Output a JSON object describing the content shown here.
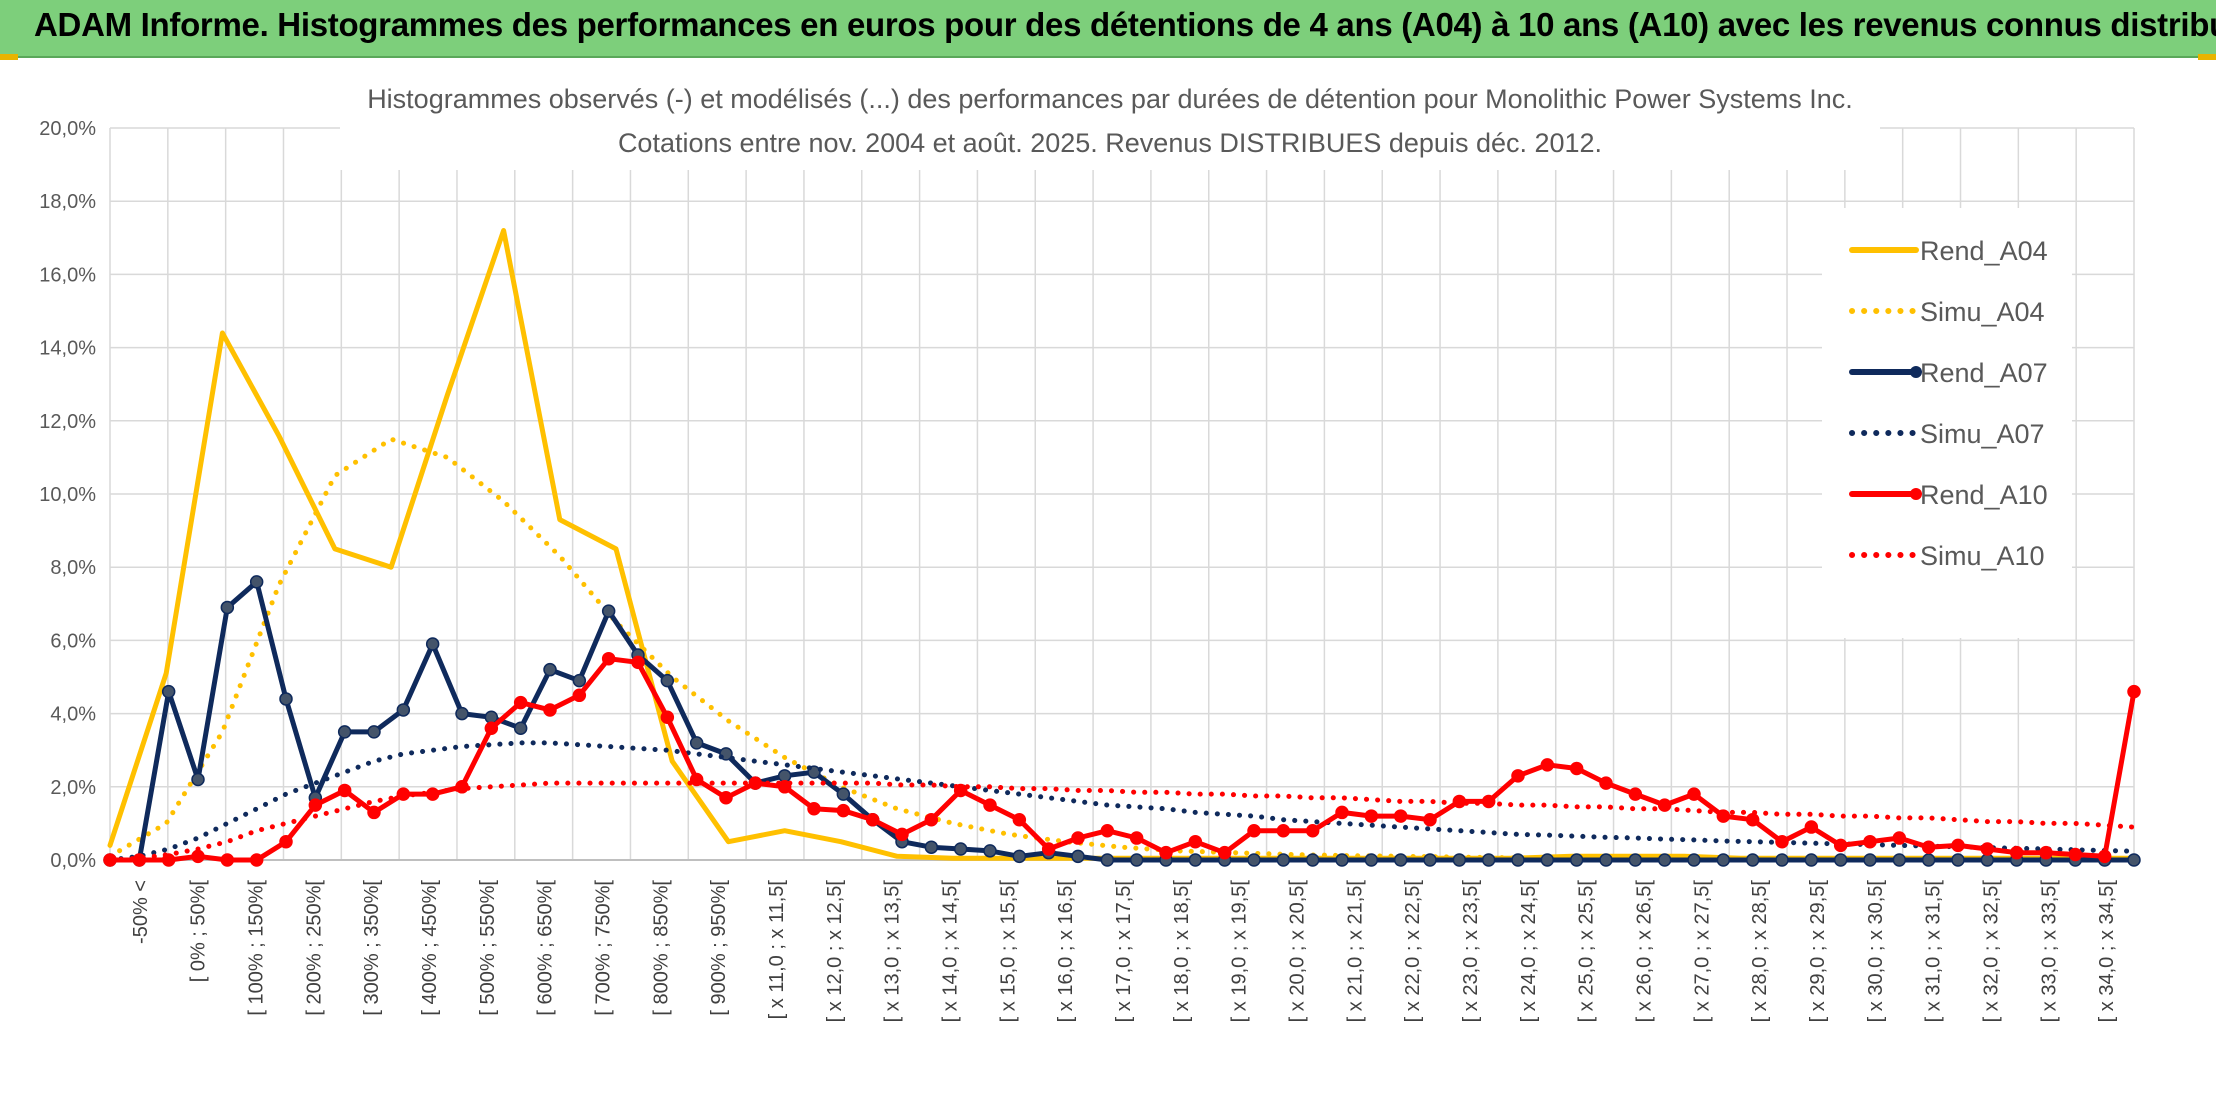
{
  "banner": {
    "title": "ADAM Informe. Histogrammes des performances en euros pour des détentions de 4 ans (A04) à 10 ans (A10) avec les revenus connus distribués"
  },
  "colors": {
    "a04": "#ffc000",
    "a07": "#0f2a5c",
    "a10": "#ff0000",
    "banner": "#7dcf7b"
  },
  "chart_data": {
    "type": "line",
    "title": "Histogrammes observés (-) et modélisés (...) des performances par durées de détention pour Monolithic Power Systems Inc.",
    "subtitle": "Cotations entre nov. 2004 et août. 2025. Revenus DISTRIBUES depuis déc. 2012.",
    "ylim": [
      0,
      20
    ],
    "yticks": [
      "0,0%",
      "2,0%",
      "4,0%",
      "6,0%",
      "8,0%",
      "10,0%",
      "12,0%",
      "14,0%",
      "16,0%",
      "18,0%",
      "20,0%"
    ],
    "grid": true,
    "legend_position": "right",
    "x_labels": [
      "-50% <",
      "[ 0% ; 50%[",
      "[ 100% ; 150%[",
      "[ 200% ; 250%[",
      "[ 300% ; 350%[",
      "[ 400% ; 450%[",
      "[ 500% ; 550%[",
      "[ 600% ; 650%[",
      "[ 700% ; 750%[",
      "[ 800% ; 850%[",
      "[ 900% ; 950%[",
      "[ x 11,0 ; x 11,5[",
      "[ x 12,0 ; x 12,5[",
      "[ x 13,0 ; x 13,5[",
      "[ x 14,0 ; x 14,5[",
      "[ x 15,0 ; x 15,5[",
      "[ x 16,0 ; x 16,5[",
      "[ x 17,0 ; x 17,5[",
      "[ x 18,0 ; x 18,5[",
      "[ x 19,0 ; x 19,5[",
      "[ x 20,0 ; x 20,5[",
      "[ x 21,0 ; x 21,5[",
      "[ x 22,0 ; x 22,5[",
      "[ x 23,0 ; x 23,5[",
      "[ x 24,0 ; x 24,5[",
      "[ x 25,0 ; x 25,5[",
      "[ x 26,0 ; x 26,5[",
      "[ x 27,0 ; x 27,5[",
      "[ x 28,0 ; x 28,5[",
      "[ x 29,0 ; x 29,5[",
      "[ x 30,0 ; x 30,5[",
      "[ x 31,0 ; x 31,5[",
      "[ x 32,0 ; x 32,5[",
      "[ x 33,0 ; x 33,5[",
      "[ x 34,0 ; x 34,5["
    ],
    "series": [
      {
        "name": "Rend_A04",
        "style": "solid",
        "color": "#ffc000",
        "markers": false,
        "values": [
          0.4,
          5.1,
          14.4,
          11.6,
          8.5,
          8.0,
          12.7,
          17.2,
          9.3,
          8.5,
          2.7,
          0.5,
          0.8,
          0.5,
          0.1,
          0.05,
          0.05,
          0.05,
          0.05,
          0.05,
          0.05,
          0.05,
          0.05,
          0.05,
          0.05,
          0.05,
          0.1,
          0.1,
          0.1,
          0.05,
          0.05,
          0.05,
          0.05,
          0.05,
          0.05,
          0.05,
          0.05
        ]
      },
      {
        "name": "Simu_A04",
        "style": "dotted",
        "color": "#ffc000",
        "markers": false,
        "values": [
          0.1,
          1.0,
          3.5,
          7.5,
          10.5,
          11.5,
          11.0,
          9.8,
          8.3,
          6.5,
          5.0,
          3.8,
          2.8,
          2.0,
          1.4,
          1.0,
          0.7,
          0.5,
          0.35,
          0.25,
          0.2,
          0.15,
          0.12,
          0.1,
          0.08,
          0.06,
          0.05,
          0.04,
          0.03,
          0.02,
          0.02,
          0.01,
          0.01,
          0.01,
          0.01,
          0.01,
          0.01
        ]
      },
      {
        "name": "Rend_A07",
        "style": "solid",
        "color": "#0f2a5c",
        "markers": true,
        "values": [
          0,
          0,
          4.6,
          2.2,
          6.9,
          7.6,
          4.4,
          1.7,
          3.5,
          3.5,
          4.1,
          5.9,
          4.0,
          3.9,
          3.6,
          5.2,
          4.9,
          6.8,
          5.6,
          4.9,
          3.2,
          2.9,
          2.1,
          2.3,
          2.4,
          1.8,
          1.1,
          0.5,
          0.35,
          0.3,
          0.25,
          0.1,
          0.2,
          0.1,
          0,
          0,
          0,
          0,
          0,
          0,
          0,
          0,
          0,
          0,
          0,
          0,
          0,
          0,
          0,
          0,
          0,
          0,
          0,
          0,
          0,
          0,
          0,
          0,
          0,
          0,
          0,
          0,
          0,
          0,
          0,
          0,
          0,
          0,
          0,
          0
        ]
      },
      {
        "name": "Simu_A07",
        "style": "dotted",
        "color": "#0f2a5c",
        "markers": false,
        "values": [
          0,
          0.1,
          0.3,
          0.6,
          1.0,
          1.4,
          1.8,
          2.1,
          2.4,
          2.7,
          2.9,
          3.0,
          3.1,
          3.15,
          3.2,
          3.2,
          3.15,
          3.1,
          3.05,
          3.0,
          2.9,
          2.8,
          2.7,
          2.6,
          2.5,
          2.4,
          2.3,
          2.2,
          2.1,
          2.0,
          1.9,
          1.8,
          1.7,
          1.6,
          1.5,
          1.45,
          1.4,
          1.3,
          1.25,
          1.2,
          1.1,
          1.05,
          1.0,
          0.95,
          0.9,
          0.85,
          0.8,
          0.75,
          0.7,
          0.68,
          0.65,
          0.62,
          0.6,
          0.57,
          0.55,
          0.52,
          0.5,
          0.48,
          0.46,
          0.44,
          0.42,
          0.4,
          0.38,
          0.36,
          0.34,
          0.32,
          0.3,
          0.28,
          0.26,
          0.24
        ]
      },
      {
        "name": "Rend_A10",
        "style": "solid",
        "color": "#ff0000",
        "markers": true,
        "values": [
          0,
          0,
          0,
          0.1,
          0,
          0,
          0.5,
          1.5,
          1.9,
          1.3,
          1.8,
          1.8,
          2.0,
          3.6,
          4.3,
          4.1,
          4.5,
          5.5,
          5.4,
          3.9,
          2.2,
          1.7,
          2.1,
          2.0,
          1.4,
          1.35,
          1.1,
          0.7,
          1.1,
          1.9,
          1.5,
          1.1,
          0.3,
          0.6,
          0.8,
          0.6,
          0.2,
          0.5,
          0.2,
          0.8,
          0.8,
          0.8,
          1.3,
          1.2,
          1.2,
          1.1,
          1.6,
          1.6,
          2.3,
          2.6,
          2.5,
          2.1,
          1.8,
          1.5,
          1.8,
          1.2,
          1.1,
          0.5,
          0.9,
          0.4,
          0.5,
          0.6,
          0.35,
          0.4,
          0.3,
          0.2,
          0.2,
          0.15,
          0.1,
          4.6
        ]
      },
      {
        "name": "Simu_A10",
        "style": "dotted",
        "color": "#ff0000",
        "markers": false,
        "values": [
          0,
          0.05,
          0.15,
          0.3,
          0.5,
          0.8,
          1.0,
          1.2,
          1.4,
          1.6,
          1.75,
          1.85,
          1.95,
          2.0,
          2.05,
          2.1,
          2.1,
          2.1,
          2.1,
          2.1,
          2.1,
          2.1,
          2.1,
          2.1,
          2.1,
          2.1,
          2.1,
          2.05,
          2.05,
          2.0,
          2.0,
          1.95,
          1.95,
          1.9,
          1.9,
          1.85,
          1.85,
          1.8,
          1.8,
          1.75,
          1.75,
          1.7,
          1.7,
          1.65,
          1.6,
          1.6,
          1.55,
          1.55,
          1.5,
          1.5,
          1.45,
          1.45,
          1.4,
          1.4,
          1.35,
          1.3,
          1.3,
          1.25,
          1.25,
          1.2,
          1.2,
          1.15,
          1.15,
          1.1,
          1.05,
          1.05,
          1.0,
          1.0,
          0.95,
          0.9
        ]
      }
    ]
  }
}
